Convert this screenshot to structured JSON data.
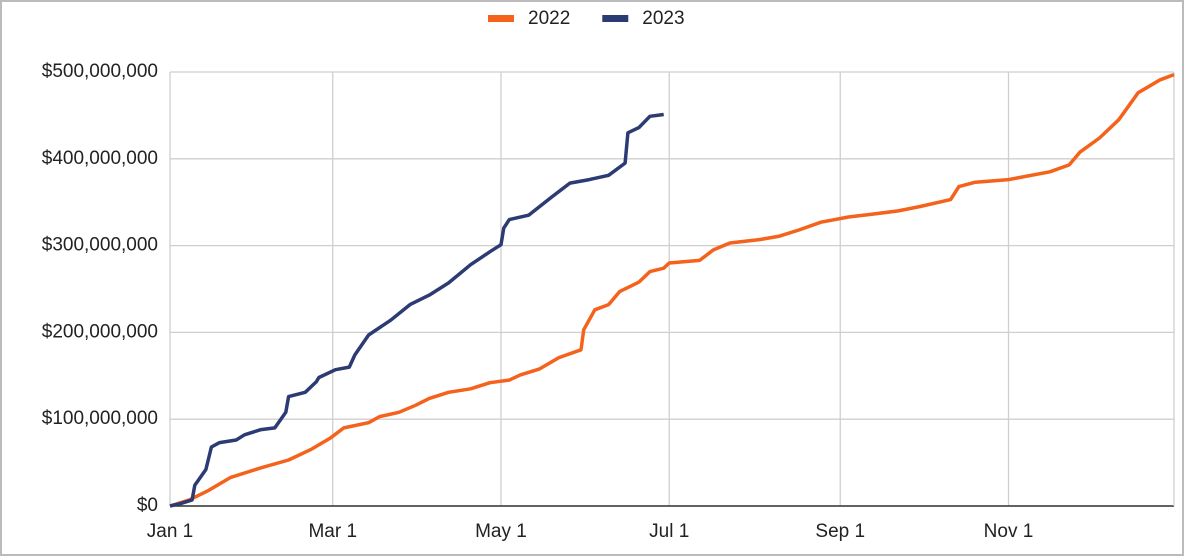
{
  "chart_data": {
    "type": "line",
    "xlim": [
      0,
      364
    ],
    "xticks": [
      {
        "value": 0,
        "label": "Jan 1"
      },
      {
        "value": 59,
        "label": "Mar 1"
      },
      {
        "value": 120,
        "label": "May 1"
      },
      {
        "value": 181,
        "label": "Jul 1"
      },
      {
        "value": 243,
        "label": "Sep 1"
      },
      {
        "value": 304,
        "label": "Nov 1"
      }
    ],
    "ylim": [
      0,
      500000000
    ],
    "yticks": [
      {
        "value": 0,
        "label": "$0"
      },
      {
        "value": 100000000,
        "label": "$100,000,000"
      },
      {
        "value": 200000000,
        "label": "$200,000,000"
      },
      {
        "value": 300000000,
        "label": "$300,000,000"
      },
      {
        "value": 400000000,
        "label": "$400,000,000"
      },
      {
        "value": 500000000,
        "label": "$500,000,000"
      }
    ],
    "grid": true,
    "legend": "top",
    "series": [
      {
        "name": "2022",
        "color": "#f4621b",
        "x": [
          0,
          7,
          14,
          22,
          33,
          43,
          51,
          58,
          63,
          72,
          76,
          83,
          89,
          94,
          101,
          109,
          116,
          123,
          127,
          134,
          141,
          149,
          150,
          154,
          159,
          163,
          170,
          174,
          179,
          181,
          192,
          197,
          203,
          214,
          221,
          228,
          236,
          246,
          254,
          264,
          272,
          283,
          286,
          292,
          304,
          319,
          326,
          330,
          337,
          344,
          351,
          359,
          364
        ],
        "values": [
          0,
          7000000,
          18000000,
          33000000,
          44000000,
          53000000,
          65000000,
          78000000,
          90000000,
          96000000,
          103000000,
          108000000,
          116000000,
          124000000,
          131000000,
          135000000,
          142000000,
          145000000,
          151000000,
          158000000,
          171000000,
          180000000,
          203000000,
          226000000,
          232000000,
          247000000,
          258000000,
          270000000,
          274000000,
          280000000,
          283000000,
          295000000,
          303000000,
          307000000,
          311000000,
          318000000,
          327000000,
          333000000,
          336000000,
          340000000,
          345000000,
          353000000,
          368000000,
          373000000,
          376000000,
          385000000,
          393000000,
          408000000,
          424000000,
          445000000,
          476000000,
          491000000,
          497000000
        ]
      },
      {
        "name": "2023",
        "color": "#2c3b73",
        "x": [
          0,
          4,
          8,
          9,
          13,
          15,
          18,
          24,
          27,
          33,
          38,
          42,
          43,
          49,
          53,
          54,
          60,
          65,
          67,
          72,
          80,
          87,
          94,
          101,
          109,
          116,
          120,
          121,
          123,
          130,
          138,
          145,
          152,
          159,
          165,
          166,
          170,
          174,
          179
        ],
        "values": [
          0,
          3000000,
          7000000,
          24000000,
          42000000,
          68000000,
          73000000,
          76000000,
          82000000,
          88000000,
          90000000,
          108000000,
          126000000,
          131000000,
          143000000,
          148000000,
          157000000,
          160000000,
          174000000,
          197000000,
          214000000,
          232000000,
          243000000,
          257000000,
          278000000,
          293000000,
          301000000,
          320000000,
          330000000,
          335000000,
          355000000,
          372000000,
          376000000,
          381000000,
          395000000,
          430000000,
          436000000,
          449000000,
          451000000
        ]
      }
    ]
  }
}
